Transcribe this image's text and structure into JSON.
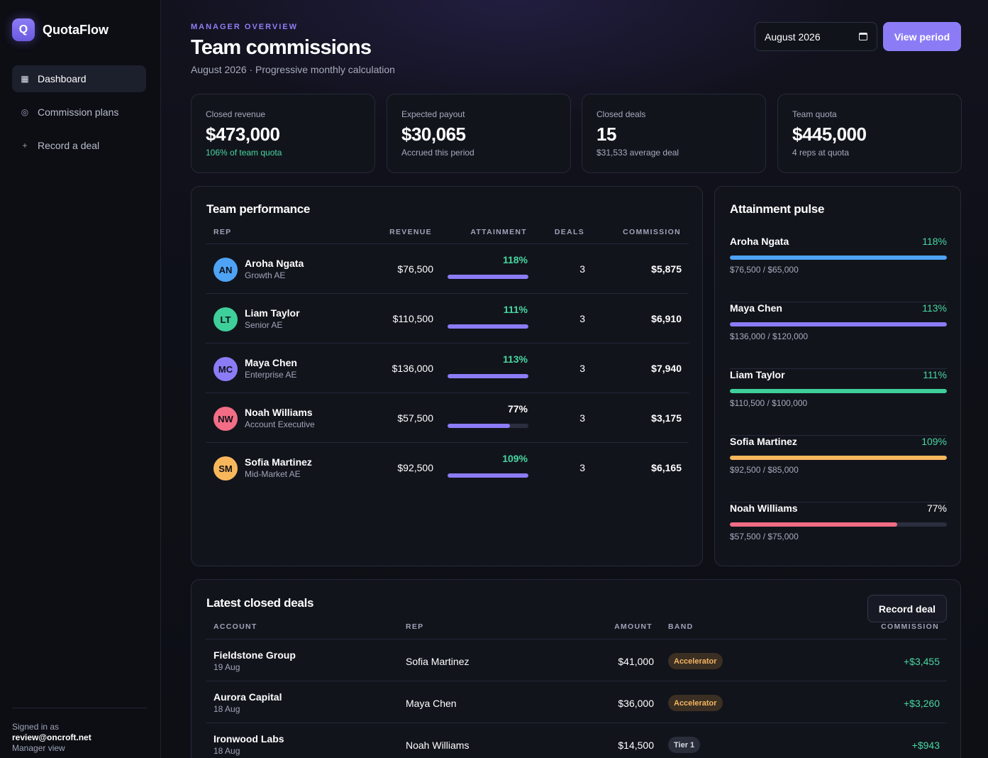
{
  "brand": {
    "logo_letter": "Q",
    "name": "QuotaFlow"
  },
  "nav": [
    {
      "label": "Dashboard",
      "icon": "grid-icon",
      "glyph": "▦",
      "active": true
    },
    {
      "label": "Commission plans",
      "icon": "circle-icon",
      "glyph": "◎",
      "active": false
    },
    {
      "label": "Record a deal",
      "icon": "plus-icon",
      "glyph": "+",
      "active": false
    }
  ],
  "account": {
    "signed_in_label": "Signed in as",
    "email": "review@oncroft.net",
    "role": "Manager view"
  },
  "header": {
    "eyebrow": "MANAGER OVERVIEW",
    "title": "Team commissions",
    "subtitle": "August 2026 · Progressive monthly calculation",
    "period_value": "August 2026",
    "view_button": "View period"
  },
  "stats": [
    {
      "label": "Closed revenue",
      "value": "$473,000",
      "sub": "106% of team quota",
      "highlight": true
    },
    {
      "label": "Expected payout",
      "value": "$30,065",
      "sub": "Accrued this period",
      "highlight": false
    },
    {
      "label": "Closed deals",
      "value": "15",
      "sub": "$31,533 average deal",
      "highlight": false
    },
    {
      "label": "Team quota",
      "value": "$445,000",
      "sub": "4 reps at quota",
      "highlight": false
    }
  ],
  "performance": {
    "title": "Team performance",
    "columns": {
      "rep": "REP",
      "revenue": "REVENUE",
      "attainment": "ATTAINMENT",
      "deals": "DEALS",
      "commission": "COMMISSION"
    },
    "rows": [
      {
        "initials": "AN",
        "avatar_color": "#4ea3f5",
        "name": "Aroha Ngata",
        "role": "Growth AE",
        "revenue": "$76,500",
        "attainment": "118%",
        "attainment_value": 1.18,
        "deals": "3",
        "commission": "$5,875",
        "pct_color": "#47d7a0"
      },
      {
        "initials": "LT",
        "avatar_color": "#3ecf9a",
        "name": "Liam Taylor",
        "role": "Senior AE",
        "revenue": "$110,500",
        "attainment": "111%",
        "attainment_value": 1.11,
        "deals": "3",
        "commission": "$6,910",
        "pct_color": "#47d7a0"
      },
      {
        "initials": "MC",
        "avatar_color": "#8b7cf6",
        "name": "Maya Chen",
        "role": "Enterprise AE",
        "revenue": "$136,000",
        "attainment": "113%",
        "attainment_value": 1.13,
        "deals": "3",
        "commission": "$7,940",
        "pct_color": "#47d7a0"
      },
      {
        "initials": "NW",
        "avatar_color": "#f26d85",
        "name": "Noah Williams",
        "role": "Account Executive",
        "revenue": "$57,500",
        "attainment": "77%",
        "attainment_value": 0.77,
        "deals": "3",
        "commission": "$3,175",
        "pct_color": "#ffffff"
      },
      {
        "initials": "SM",
        "avatar_color": "#f9b75c",
        "name": "Sofia Martinez",
        "role": "Mid-Market AE",
        "revenue": "$92,500",
        "attainment": "109%",
        "attainment_value": 1.09,
        "deals": "3",
        "commission": "$6,165",
        "pct_color": "#47d7a0"
      }
    ]
  },
  "pulse": {
    "title": "Attainment pulse",
    "items": [
      {
        "name": "Aroha Ngata",
        "pct": "118%",
        "value": 1.18,
        "detail": "$76,500 / $65,000",
        "bar_color": "#4ea3f5",
        "pct_color": "#47d7a0"
      },
      {
        "name": "Maya Chen",
        "pct": "113%",
        "value": 1.13,
        "detail": "$136,000 / $120,000",
        "bar_color": "#8b7cf6",
        "pct_color": "#47d7a0"
      },
      {
        "name": "Liam Taylor",
        "pct": "111%",
        "value": 1.11,
        "detail": "$110,500 / $100,000",
        "bar_color": "#3ecf9a",
        "pct_color": "#47d7a0"
      },
      {
        "name": "Sofia Martinez",
        "pct": "109%",
        "value": 1.09,
        "detail": "$92,500 / $85,000",
        "bar_color": "#f9b75c",
        "pct_color": "#47d7a0"
      },
      {
        "name": "Noah Williams",
        "pct": "77%",
        "value": 0.77,
        "detail": "$57,500 / $75,000",
        "bar_color": "#f26d85",
        "pct_color": "#ffffff"
      }
    ]
  },
  "latest_deals": {
    "title": "Latest closed deals",
    "record_button": "Record deal",
    "columns": {
      "account": "ACCOUNT",
      "rep": "REP",
      "amount": "AMOUNT",
      "band": "BAND",
      "commission": "COMMISSION"
    },
    "rows": [
      {
        "account": "Fieldstone Group",
        "date": "19 Aug",
        "rep": "Sofia Martinez",
        "amount": "$41,000",
        "band": "Accelerator",
        "band_kind": "acc",
        "commission": "+$3,455"
      },
      {
        "account": "Aurora Capital",
        "date": "18 Aug",
        "rep": "Maya Chen",
        "amount": "$36,000",
        "band": "Accelerator",
        "band_kind": "acc",
        "commission": "+$3,260"
      },
      {
        "account": "Ironwood Labs",
        "date": "18 Aug",
        "rep": "Noah Williams",
        "amount": "$14,500",
        "band": "Tier 1",
        "band_kind": "tier",
        "commission": "+$943"
      }
    ]
  }
}
